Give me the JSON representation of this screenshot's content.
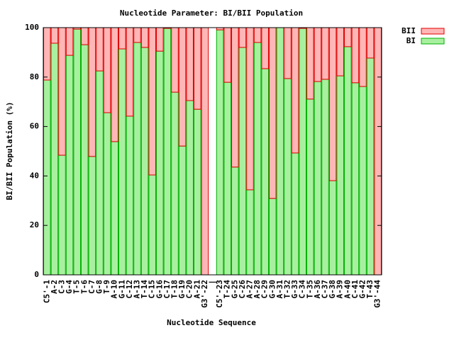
{
  "chart_data": {
    "type": "stacked-bar",
    "title": "Nucleotide Parameter: BI/BII Population",
    "xlabel": "Nucleotide Sequence",
    "ylabel": "BI/BII Population (%)",
    "categories": [
      "C5'-1",
      "A-2",
      "C-3",
      "G-4",
      "T-5",
      "T-6",
      "C-7",
      "G-8",
      "T-9",
      "A-10",
      "G-11",
      "C-12",
      "A-13",
      "T-14",
      "C-15",
      "G-16",
      "C-17",
      "T-18",
      "G-19",
      "C-20",
      "A-21",
      "G3'-22",
      "|",
      "C5'-23",
      "T-24",
      "G-25",
      "C-26",
      "A-27",
      "A-28",
      "C-29",
      "G-30",
      "A-31",
      "T-32",
      "G-33",
      "C-34",
      "T-35",
      "A-36",
      "C-37",
      "G-38",
      "A-39",
      "A-40",
      "C-41",
      "G-42",
      "T-43",
      "G3'-44"
    ],
    "series": [
      {
        "name": "BI",
        "color": "#a8f0a0",
        "edge": "#00b000",
        "values": [
          78.8,
          93.7,
          48.4,
          88.8,
          99.4,
          93.1,
          47.9,
          82.5,
          65.6,
          53.9,
          91.4,
          64.2,
          94.0,
          92.0,
          40.4,
          90.5,
          99.7,
          73.9,
          52.1,
          70.5,
          67.0,
          0,
          null,
          99.1,
          77.9,
          43.6,
          92.0,
          34.4,
          94.0,
          83.4,
          30.9,
          100,
          79.4,
          49.3,
          99.7,
          71.1,
          78.2,
          79.1,
          38.1,
          80.5,
          92.3,
          77.7,
          76.2,
          87.7,
          0
        ]
      },
      {
        "name": "BII",
        "color": "#ffb6b6",
        "edge": "#e00000",
        "values": [
          21.2,
          6.3,
          51.6,
          11.2,
          0.6,
          6.9,
          52.1,
          17.5,
          34.4,
          46.1,
          8.6,
          35.8,
          6.0,
          8.0,
          59.6,
          9.5,
          0.3,
          26.1,
          47.9,
          29.5,
          33.0,
          100,
          null,
          0.9,
          22.1,
          56.4,
          8.0,
          65.6,
          6.0,
          16.6,
          69.1,
          0,
          20.6,
          50.7,
          0.3,
          28.9,
          21.8,
          20.9,
          61.9,
          19.5,
          7.7,
          22.3,
          23.8,
          12.3,
          100
        ]
      }
    ],
    "ylim": [
      0,
      100
    ],
    "yticks": [
      0,
      20,
      40,
      60,
      80,
      100
    ],
    "legend": "top-right-outside"
  }
}
